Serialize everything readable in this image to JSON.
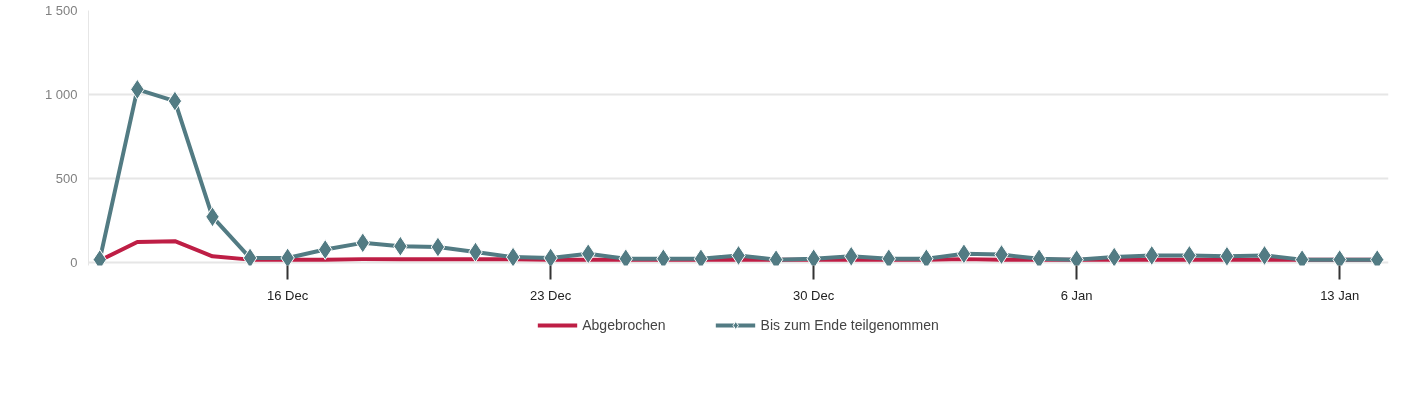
{
  "chart_data": {
    "type": "line",
    "categories": [
      null,
      null,
      null,
      null,
      null,
      "16 Dec",
      null,
      null,
      null,
      null,
      null,
      null,
      "23 Dec",
      null,
      null,
      null,
      null,
      null,
      null,
      "30 Dec",
      null,
      null,
      null,
      null,
      null,
      null,
      "6 Jan",
      null,
      null,
      null,
      null,
      null,
      null,
      "13 Jan",
      null
    ],
    "series": [
      {
        "name": "Abgebrochen",
        "color": "#be1e45",
        "marker": "none",
        "values": [
          10,
          120,
          125,
          35,
          15,
          15,
          15,
          18,
          18,
          18,
          18,
          18,
          15,
          15,
          15,
          15,
          15,
          15,
          15,
          15,
          15,
          15,
          15,
          18,
          15,
          15,
          15,
          15,
          15,
          15,
          15,
          15,
          15,
          15,
          15
        ]
      },
      {
        "name": "Bis zum Ende teilgenommen",
        "color": "#527b83",
        "marker": "diamond",
        "values": [
          15,
          1030,
          960,
          270,
          25,
          25,
          75,
          115,
          95,
          90,
          60,
          30,
          25,
          50,
          20,
          20,
          20,
          40,
          15,
          20,
          35,
          20,
          20,
          50,
          45,
          20,
          15,
          30,
          40,
          40,
          35,
          40,
          15,
          15,
          15
        ]
      }
    ],
    "ylim": [
      -20,
      1500
    ],
    "yticks": [
      0,
      500,
      {
        "value": 1000,
        "label": "1 000"
      },
      {
        "value": 1500,
        "label": "1 500"
      }
    ],
    "grid": "y",
    "legend": "bottom"
  }
}
